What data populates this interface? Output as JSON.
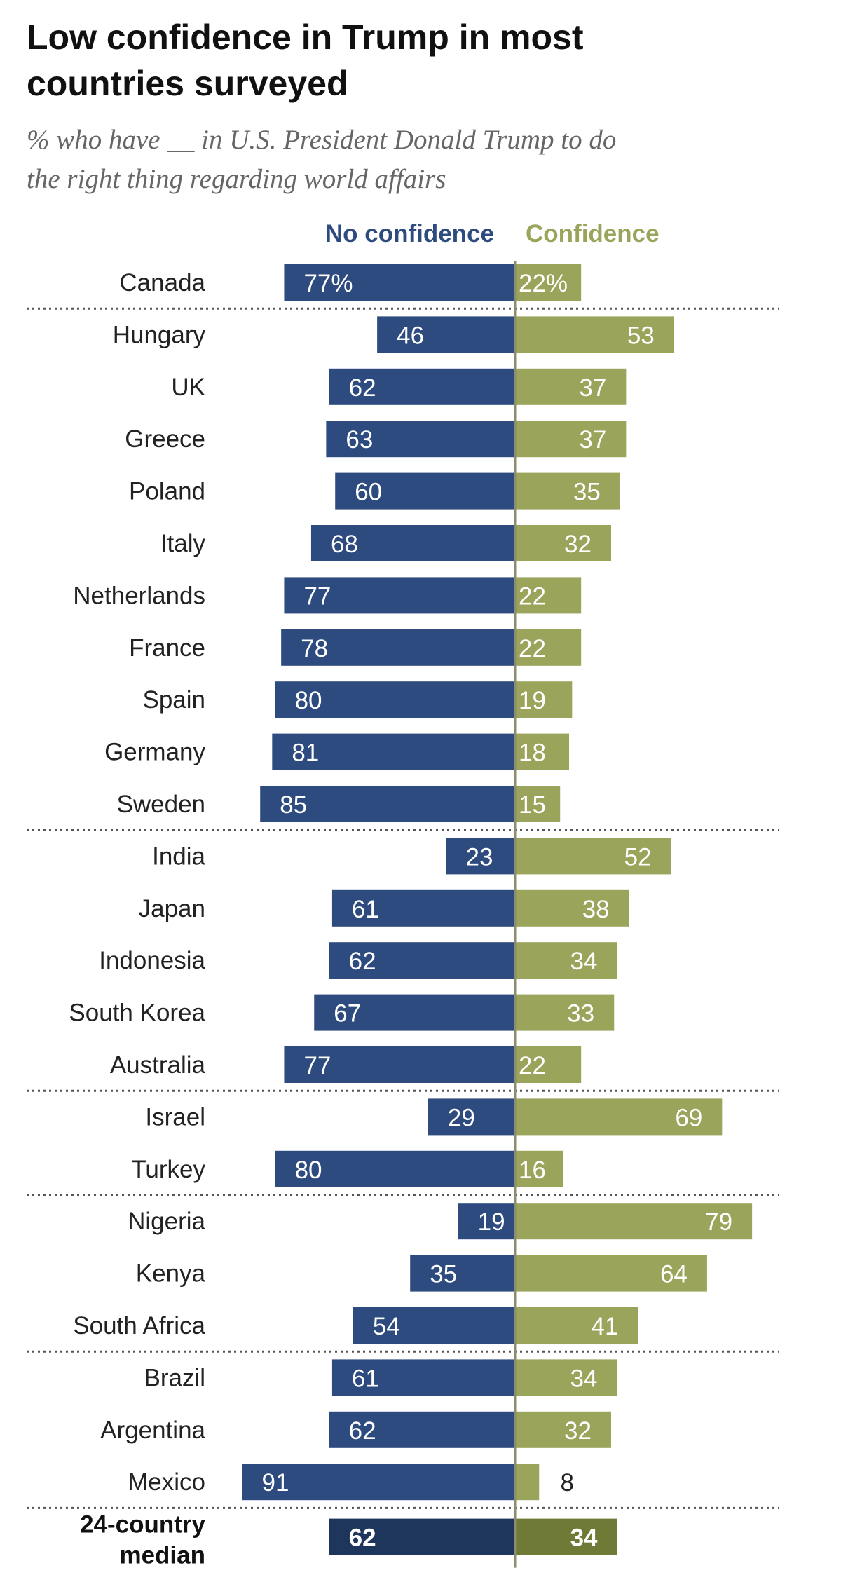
{
  "title": [
    "Low confidence in Trump in most",
    "countries surveyed"
  ],
  "subtitle": [
    "% who have __ in U.S. President Donald Trump to do",
    "the right thing regarding world affairs"
  ],
  "colors": {
    "no_confidence": "#2e4b7f",
    "confidence": "#9aa45a",
    "no_confidence_median": "#1e355c",
    "confidence_median": "#6f7a37",
    "divider": "#555555",
    "axis": "#8c8c6e"
  },
  "chart_data": {
    "type": "bar",
    "orientation": "diverging-horizontal",
    "legend": [
      "No confidence",
      "Confidence"
    ],
    "categories": [
      "Canada",
      "Hungary",
      "UK",
      "Greece",
      "Poland",
      "Italy",
      "Netherlands",
      "France",
      "Spain",
      "Germany",
      "Sweden",
      "India",
      "Japan",
      "Indonesia",
      "South Korea",
      "Australia",
      "Israel",
      "Turkey",
      "Nigeria",
      "Kenya",
      "South Africa",
      "Brazil",
      "Argentina",
      "Mexico"
    ],
    "series": [
      {
        "name": "No confidence",
        "values": [
          77,
          46,
          62,
          63,
          60,
          68,
          77,
          78,
          80,
          81,
          85,
          23,
          61,
          62,
          67,
          77,
          29,
          80,
          19,
          35,
          54,
          61,
          62,
          91
        ]
      },
      {
        "name": "Confidence",
        "values": [
          22,
          53,
          37,
          37,
          35,
          32,
          22,
          22,
          19,
          18,
          15,
          52,
          38,
          34,
          33,
          22,
          69,
          16,
          79,
          64,
          41,
          34,
          32,
          8
        ]
      }
    ],
    "value_labels": {
      "No confidence": [
        "77%",
        "46",
        "62",
        "63",
        "60",
        "68",
        "77",
        "78",
        "80",
        "81",
        "85",
        "23",
        "61",
        "62",
        "67",
        "77",
        "29",
        "80",
        "19",
        "35",
        "54",
        "61",
        "62",
        "91"
      ],
      "Confidence": [
        "22%",
        "53",
        "37",
        "37",
        "35",
        "32",
        "22",
        "22",
        "19",
        "18",
        "15",
        "52",
        "38",
        "34",
        "33",
        "22",
        "69",
        "16",
        "79",
        "64",
        "41",
        "34",
        "32",
        "8"
      ]
    },
    "group_breaks_after": [
      "Canada",
      "Sweden",
      "Australia",
      "Turkey",
      "South Africa",
      "Mexico"
    ],
    "median": {
      "label": [
        "24-country",
        "median"
      ],
      "no_confidence": 62,
      "confidence": 34
    },
    "xlim": [
      0,
      100
    ]
  }
}
